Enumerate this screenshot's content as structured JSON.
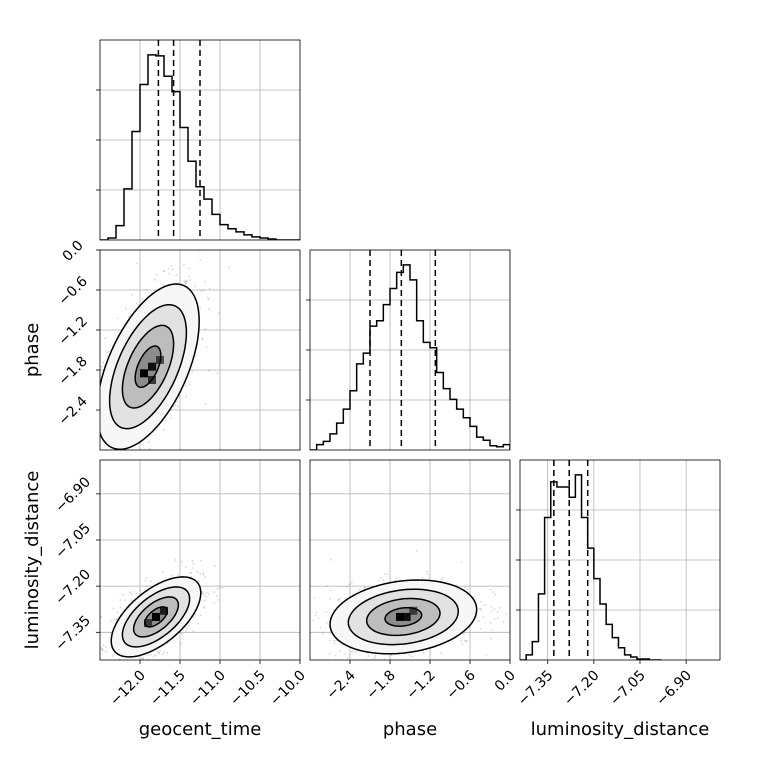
{
  "chart_data": {
    "type": "corner",
    "parameters": [
      "geocent_time",
      "phase",
      "luminosity_distance"
    ],
    "axes": {
      "geocent_time": {
        "label": "geocent_time",
        "range": [
          -12.5,
          -10.0
        ],
        "ticks": [
          -12.0,
          -11.5,
          -11.0,
          -10.5,
          -10.0
        ],
        "tick_labels": [
          "−12.0",
          "−11.5",
          "−11.0",
          "−10.5",
          "−10.0"
        ]
      },
      "phase": {
        "label": "phase",
        "range": [
          -3.0,
          0.0
        ],
        "ticks": [
          -2.4,
          -1.8,
          -1.2,
          -0.6,
          0.0
        ],
        "tick_labels": [
          "−2.4",
          "−1.8",
          "−1.2",
          "−0.6",
          "0.0"
        ]
      },
      "luminosity_distance": {
        "label": "luminosity_distance",
        "range": [
          -7.44,
          -6.79
        ],
        "ticks": [
          -7.35,
          -7.2,
          -7.05,
          -6.9
        ],
        "tick_labels": [
          "−7.35",
          "−7.20",
          "−7.05",
          "−6.90"
        ]
      }
    },
    "histograms": {
      "geocent_time": {
        "bin_edges": [
          -12.5,
          -12.4,
          -12.3,
          -12.2,
          -12.1,
          -12.0,
          -11.9,
          -11.8,
          -11.7,
          -11.6,
          -11.5,
          -11.4,
          -11.3,
          -11.2,
          -11.1,
          -11.0,
          -10.9,
          -10.8,
          -10.7,
          -10.6,
          -10.5,
          -10.4,
          -10.3,
          -10.2,
          -10.1,
          -10.0
        ],
        "counts": [
          0,
          2,
          14,
          50,
          106,
          152,
          181,
          180,
          160,
          145,
          110,
          77,
          52,
          40,
          25,
          15,
          11,
          8,
          5,
          3,
          2,
          1,
          0,
          0,
          0
        ],
        "quantiles": [
          -11.77,
          -11.58,
          -11.25
        ]
      },
      "phase": {
        "bin_edges": [
          -3.0,
          -2.9,
          -2.8,
          -2.7,
          -2.6,
          -2.5,
          -2.4,
          -2.3,
          -2.2,
          -2.1,
          -2.0,
          -1.9,
          -1.8,
          -1.7,
          -1.6,
          -1.5,
          -1.4,
          -1.3,
          -1.2,
          -1.1,
          -1.0,
          -0.9,
          -0.8,
          -0.7,
          -0.6,
          -0.5,
          -0.4,
          -0.3,
          -0.2,
          -0.1,
          0.0
        ],
        "counts": [
          0,
          5,
          8,
          15,
          25,
          38,
          55,
          80,
          90,
          115,
          120,
          135,
          150,
          165,
          172,
          158,
          120,
          100,
          95,
          72,
          57,
          47,
          38,
          30,
          22,
          12,
          9,
          4,
          3,
          5
        ],
        "quantiles": [
          -2.1,
          -1.63,
          -1.12
        ]
      },
      "luminosity_distance": {
        "bin_edges": [
          -7.44,
          -7.42,
          -7.4,
          -7.38,
          -7.36,
          -7.34,
          -7.32,
          -7.3,
          -7.28,
          -7.26,
          -7.24,
          -7.22,
          -7.2,
          -7.18,
          -7.16,
          -7.14,
          -7.12,
          -7.1,
          -7.08,
          -7.06,
          -7.04,
          -7.02,
          -7.0,
          -6.98
        ],
        "counts": [
          0,
          5,
          18,
          65,
          140,
          175,
          170,
          170,
          160,
          182,
          140,
          110,
          80,
          55,
          35,
          22,
          12,
          5,
          3,
          1,
          1,
          0,
          0
        ],
        "quantiles": [
          -7.33,
          -7.28,
          -7.22
        ]
      }
    },
    "joint": [
      {
        "x": "geocent_time",
        "y": "phase",
        "peak": [
          -11.9,
          -1.75
        ],
        "spread": [
          0.32,
          0.62
        ],
        "correlation": 0.55,
        "contour_levels_sigma": [
          0.5,
          1.0,
          1.5,
          2.0
        ],
        "cells": [
          {
            "x": -11.95,
            "y": -1.85,
            "value": 1.0
          },
          {
            "x": -11.85,
            "y": -1.75,
            "value": 0.9
          },
          {
            "x": -11.85,
            "y": -1.95,
            "value": 0.7
          },
          {
            "x": -11.75,
            "y": -1.65,
            "value": 0.6
          }
        ]
      },
      {
        "x": "geocent_time",
        "y": "luminosity_distance",
        "peak": [
          -11.8,
          -7.3
        ],
        "spread": [
          0.28,
          0.065
        ],
        "correlation": 0.6,
        "contour_levels_sigma": [
          0.5,
          1.0,
          1.5,
          2.0
        ],
        "cells": [
          {
            "x": -11.8,
            "y": -7.3,
            "value": 1.0
          },
          {
            "x": -11.7,
            "y": -7.28,
            "value": 0.8
          },
          {
            "x": -11.9,
            "y": -7.32,
            "value": 0.6
          }
        ]
      },
      {
        "x": "phase",
        "y": "luminosity_distance",
        "peak": [
          -1.6,
          -7.3
        ],
        "spread": [
          0.55,
          0.06
        ],
        "correlation": 0.2,
        "contour_levels_sigma": [
          0.5,
          1.0,
          1.5,
          2.0
        ],
        "cells": [
          {
            "x": -1.65,
            "y": -7.3,
            "value": 1.0
          },
          {
            "x": -1.55,
            "y": -7.3,
            "value": 0.9
          },
          {
            "x": -1.45,
            "y": -7.28,
            "value": 0.6
          }
        ]
      }
    ],
    "grid": true,
    "title": ""
  }
}
